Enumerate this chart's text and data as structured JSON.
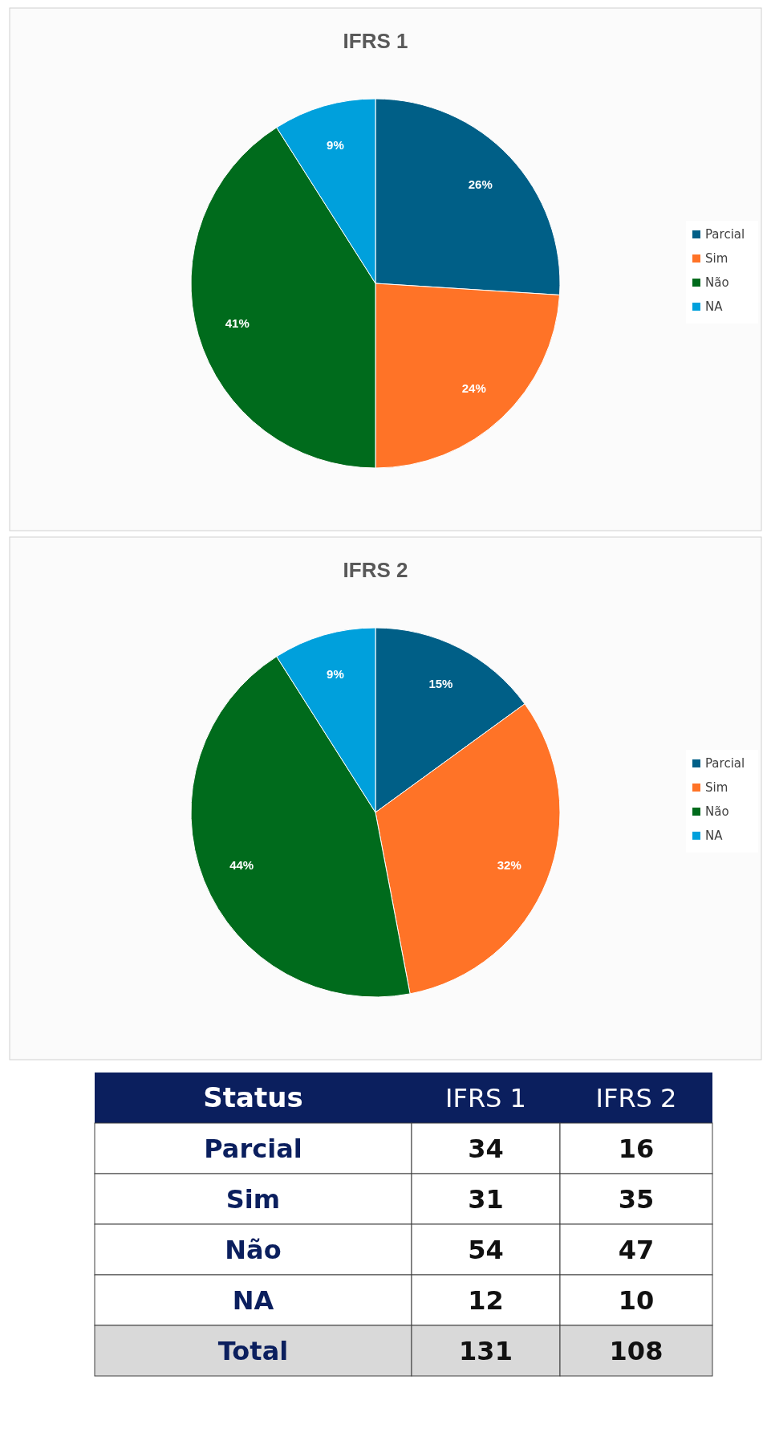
{
  "chart_data": [
    {
      "type": "pie",
      "title": "IFRS 1",
      "categories": [
        "Parcial",
        "Sim",
        "Não",
        "NA"
      ],
      "values": [
        26,
        24,
        41,
        9
      ],
      "colors": [
        "#005f87",
        "#ff7327",
        "#006b1c",
        "#00a0dc"
      ],
      "value_labels": [
        "26%",
        "24%",
        "41%",
        "9%"
      ],
      "legend": "right"
    },
    {
      "type": "pie",
      "title": "IFRS 2",
      "categories": [
        "Parcial",
        "Sim",
        "Não",
        "NA"
      ],
      "values": [
        15,
        32,
        44,
        9
      ],
      "colors": [
        "#005f87",
        "#ff7327",
        "#006b1c",
        "#00a0dc"
      ],
      "value_labels": [
        "15%",
        "32%",
        "44%",
        "9%"
      ],
      "legend": "right"
    },
    {
      "type": "other",
      "xlabel": "Status",
      "categories": [
        "Parcial",
        "Sim",
        "Não",
        "NA",
        "Total"
      ],
      "series": [
        {
          "name": "IFRS 1",
          "colors": [
            "#ffffff",
            "#ffffff",
            "#ffffff",
            "#ffffff",
            "#d9d9d9"
          ],
          "values": [
            34,
            31,
            54,
            12,
            131
          ]
        },
        {
          "name": "IFRS 2",
          "colors": [
            "#ffffff",
            "#ffffff",
            "#ffffff",
            "#ffffff",
            "#d9d9d9"
          ],
          "values": [
            16,
            35,
            47,
            10,
            108
          ]
        }
      ],
      "data_labels": true
    }
  ]
}
